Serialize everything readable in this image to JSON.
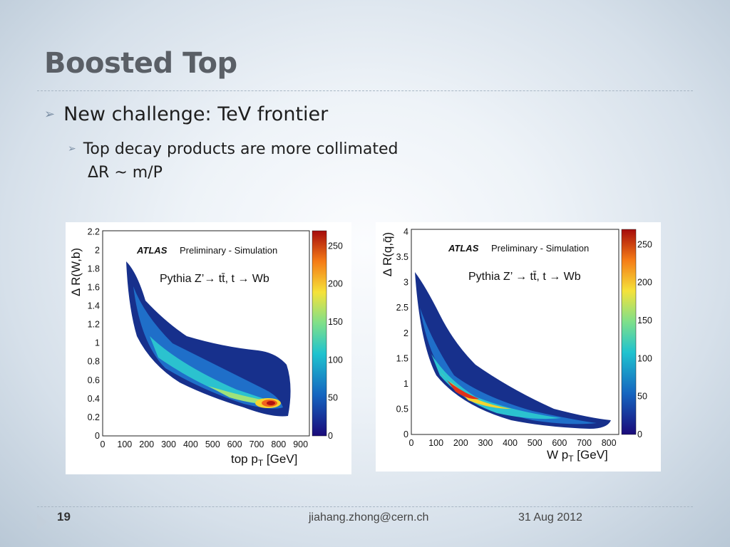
{
  "slide": {
    "title": "Boosted Top",
    "bullet1": "New challenge: TeV frontier",
    "bullet2_line1": "Top decay products are more collimated",
    "bullet2_line2": "ΔR ~ m/P",
    "page_number": "19",
    "email": "jiahang.zhong@cern.ch",
    "date": "31 Aug 2012"
  },
  "plots": [
    {
      "label_atlas": "ATLAS",
      "label_prelim": "Preliminary - Simulation",
      "label_process": "Pythia Z’→ tt̄, t → Wb",
      "xlabel": "top p",
      "xlabel_sub": "T",
      "xlabel_unit": " [GeV]",
      "ylabel": "Δ R(W,b)",
      "x_ticks": [
        "0",
        "100",
        "200",
        "300",
        "400",
        "500",
        "600",
        "700",
        "800",
        "900"
      ],
      "y_ticks": [
        "0",
        "0.2",
        "0.4",
        "0.6",
        "0.8",
        "1",
        "1.2",
        "1.4",
        "1.6",
        "1.8",
        "2",
        "2.2"
      ],
      "z_ticks": [
        "0",
        "50",
        "100",
        "150",
        "200",
        "250"
      ]
    },
    {
      "label_atlas": "ATLAS",
      "label_prelim": "Preliminary - Simulation",
      "label_process": "Pythia Z’ → tt̄, t → Wb",
      "xlabel": "W p",
      "xlabel_sub": "T",
      "xlabel_unit": " [GeV]",
      "ylabel": "Δ R(q,q̄)",
      "x_ticks": [
        "0",
        "100",
        "200",
        "300",
        "400",
        "500",
        "600",
        "700",
        "800"
      ],
      "y_ticks": [
        "0",
        "0.5",
        "1",
        "1.5",
        "2",
        "2.5",
        "3",
        "3.5",
        "4"
      ],
      "z_ticks": [
        "0",
        "50",
        "100",
        "150",
        "200",
        "250"
      ]
    }
  ]
}
